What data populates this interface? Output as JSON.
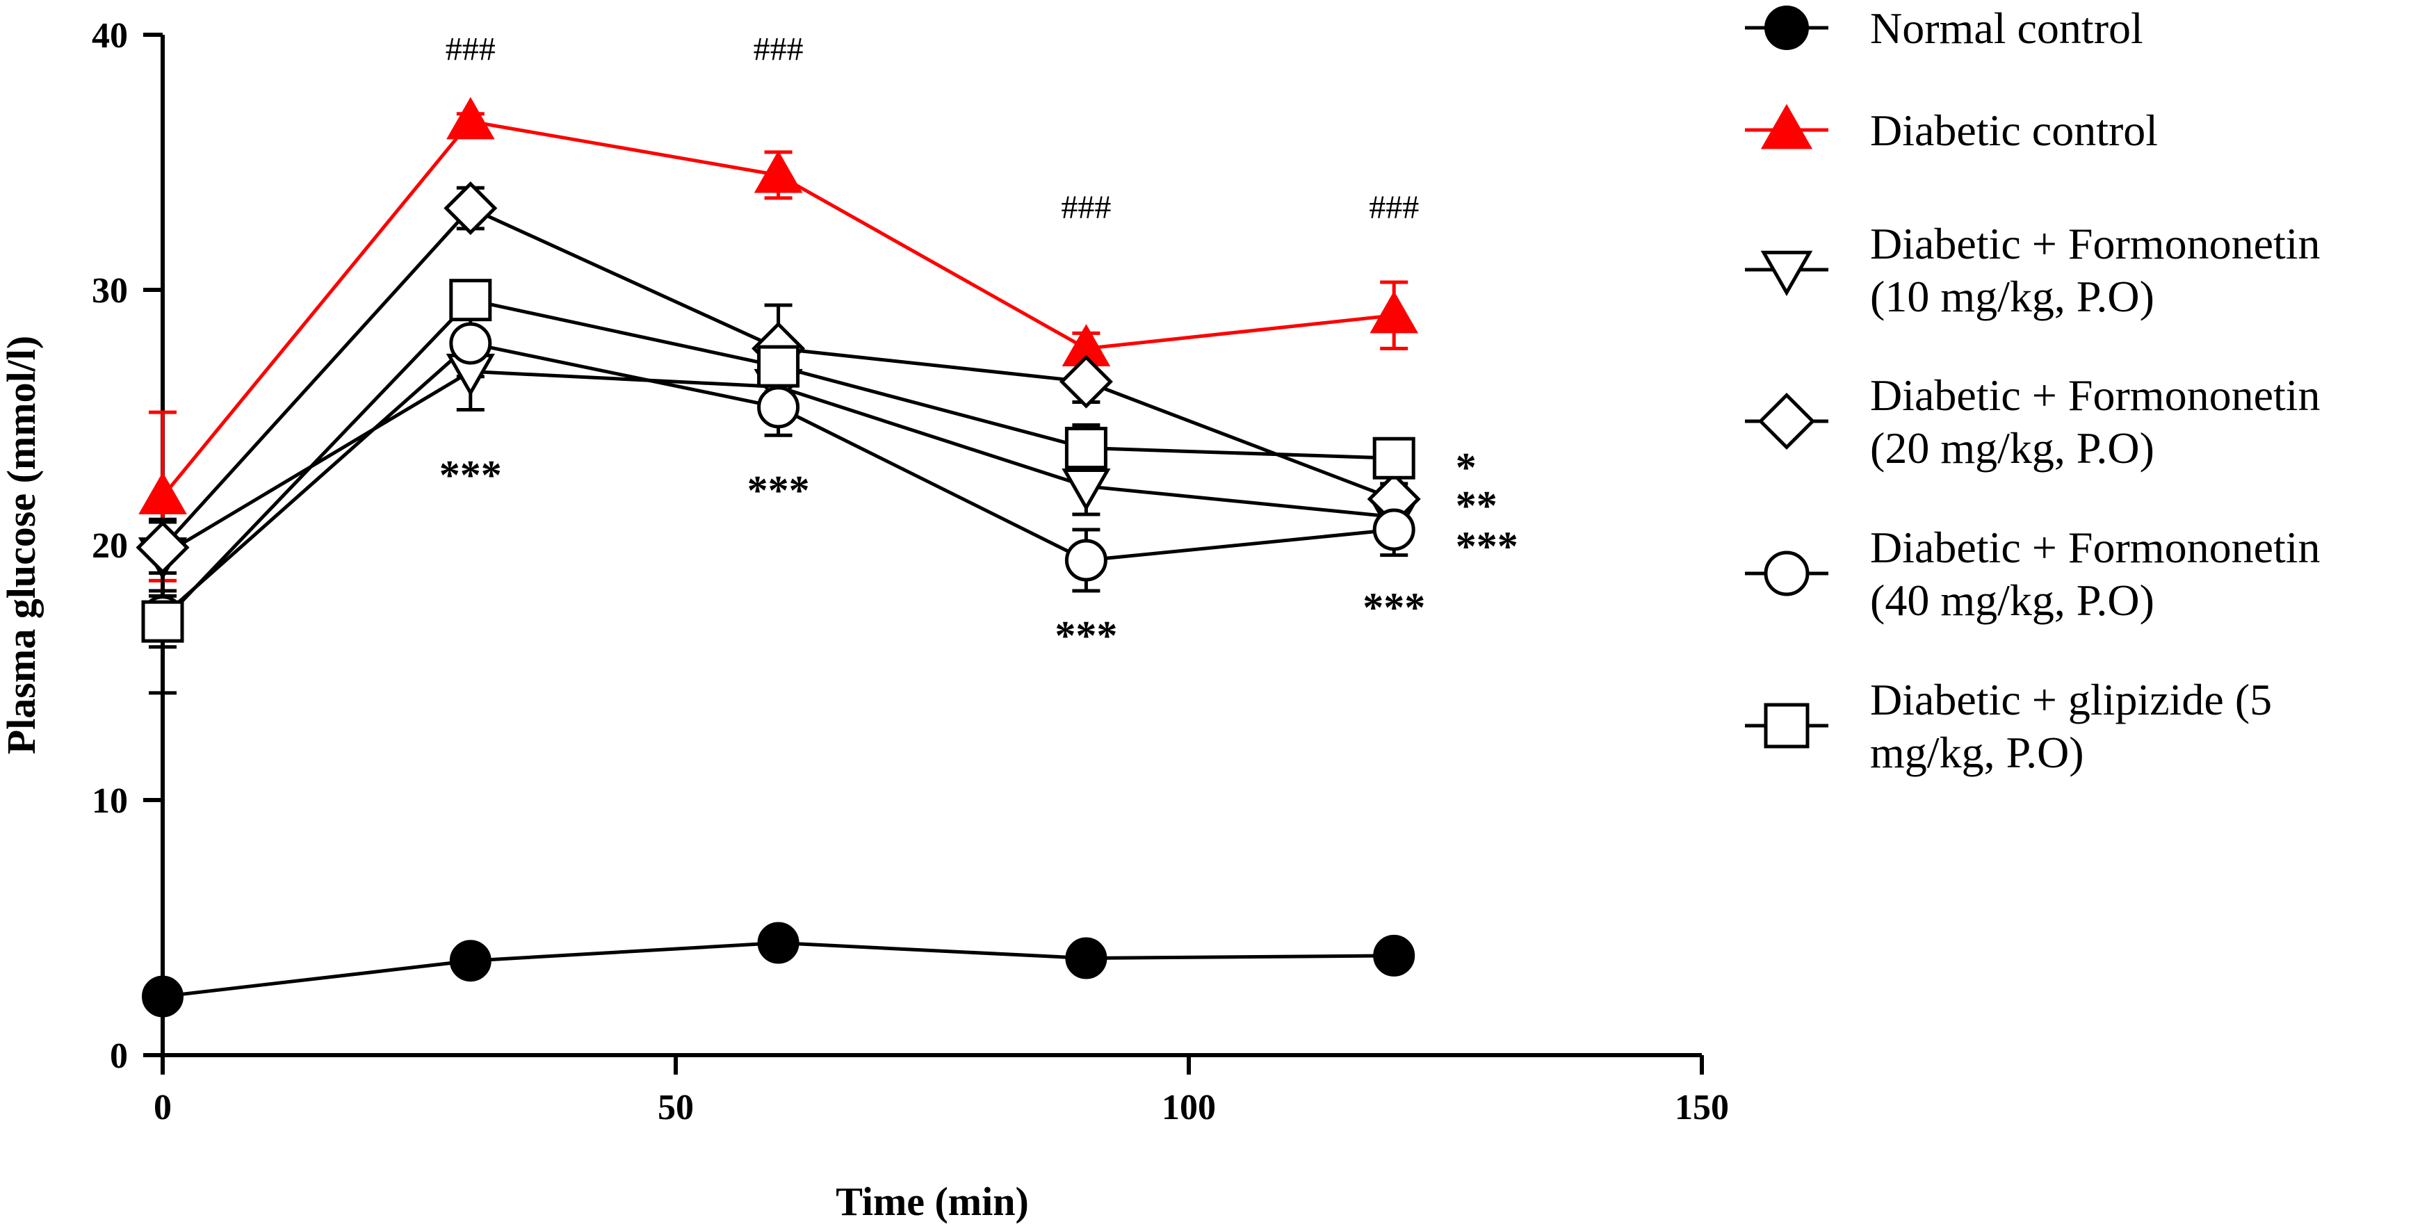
{
  "chart_data": {
    "type": "line",
    "title": "",
    "xlabel": "Time (min)",
    "ylabel": "Plasma glucose (mmol/l)",
    "xlim": [
      0,
      150
    ],
    "ylim": [
      0,
      40
    ],
    "x_ticks": [
      "0",
      "50",
      "100",
      "150"
    ],
    "y_ticks": [
      "0",
      "10",
      "20",
      "30",
      "40"
    ],
    "x": [
      0,
      30,
      60,
      90,
      120
    ],
    "series": [
      {
        "name": "Normal control",
        "marker": "filled-circle",
        "color": "#000000",
        "values": [
          2.3,
          3.7,
          4.4,
          3.8,
          3.9
        ],
        "errors": [
          0.3,
          0.3,
          0.3,
          0.3,
          0.3
        ]
      },
      {
        "name": "Diabetic control",
        "marker": "filled-triangle-up",
        "color": "#ff0000",
        "values": [
          21.9,
          36.6,
          34.5,
          27.7,
          29.0
        ],
        "errors": [
          3.3,
          0.3,
          0.9,
          0.6,
          1.3
        ]
      },
      {
        "name": "Diabetic + Formononetin (10 mg/kg, P.O)",
        "marker": "open-triangle-down",
        "color": "#000000",
        "values": [
          19.6,
          26.8,
          26.2,
          22.3,
          21.1
        ],
        "errors": [
          1.4,
          1.5,
          1.2,
          1.1,
          1.0
        ]
      },
      {
        "name": "Diabetic + Formononetin (20 mg/kg, P.O)",
        "marker": "open-diamond",
        "color": "#000000",
        "values": [
          19.9,
          33.2,
          27.7,
          26.4,
          21.8
        ],
        "errors": [
          1.0,
          0.8,
          1.7,
          0.8,
          0.6
        ]
      },
      {
        "name": "Diabetic + Formononetin (40 mg/kg, P.O)",
        "marker": "open-circle",
        "color": "#000000",
        "values": [
          17.2,
          27.9,
          25.4,
          19.4,
          20.6
        ],
        "errors": [
          3.0,
          1.3,
          1.1,
          1.2,
          1.0
        ]
      },
      {
        "name": "Diabetic + glipizide (5 mg/kg, P.O)",
        "marker": "open-square",
        "color": "#000000",
        "values": [
          17.0,
          29.6,
          27.0,
          23.8,
          23.4
        ],
        "errors": [
          1.0,
          0.7,
          0.8,
          0.9,
          0.7
        ]
      }
    ],
    "annotations": [
      {
        "text": "###",
        "x": 30,
        "y": 39.0,
        "kind": "hash"
      },
      {
        "text": "###",
        "x": 60,
        "y": 39.0,
        "kind": "hash"
      },
      {
        "text": "###",
        "x": 90,
        "y": 32.8,
        "kind": "hash"
      },
      {
        "text": "###",
        "x": 120,
        "y": 32.8,
        "kind": "hash"
      },
      {
        "text": "***",
        "x": 30,
        "y": 22.2,
        "kind": "star",
        "anchor": "middle"
      },
      {
        "text": "***",
        "x": 60,
        "y": 21.6,
        "kind": "star",
        "anchor": "middle"
      },
      {
        "text": "***",
        "x": 90,
        "y": 15.9,
        "kind": "star",
        "anchor": "middle"
      },
      {
        "text": "***",
        "x": 120,
        "y": 17.0,
        "kind": "star",
        "anchor": "middle"
      },
      {
        "text": "*",
        "x": 126,
        "y": 22.5,
        "kind": "star",
        "anchor": "start"
      },
      {
        "text": "**",
        "x": 126,
        "y": 21.0,
        "kind": "star",
        "anchor": "start"
      },
      {
        "text": "***",
        "x": 126,
        "y": 19.4,
        "kind": "star",
        "anchor": "start"
      }
    ],
    "legend": {
      "position": "right",
      "entries": [
        {
          "lines": [
            "Normal control"
          ]
        },
        {
          "lines": [
            "Diabetic control"
          ]
        },
        {
          "lines": [
            "Diabetic + Formononetin",
            "(10 mg/kg, P.O)"
          ]
        },
        {
          "lines": [
            "Diabetic + Formononetin",
            "(20 mg/kg, P.O)"
          ]
        },
        {
          "lines": [
            "Diabetic + Formononetin",
            "(40 mg/kg, P.O)"
          ]
        },
        {
          "lines": [
            "Diabetic + glipizide (5",
            "mg/kg, P.O)"
          ]
        }
      ]
    }
  }
}
